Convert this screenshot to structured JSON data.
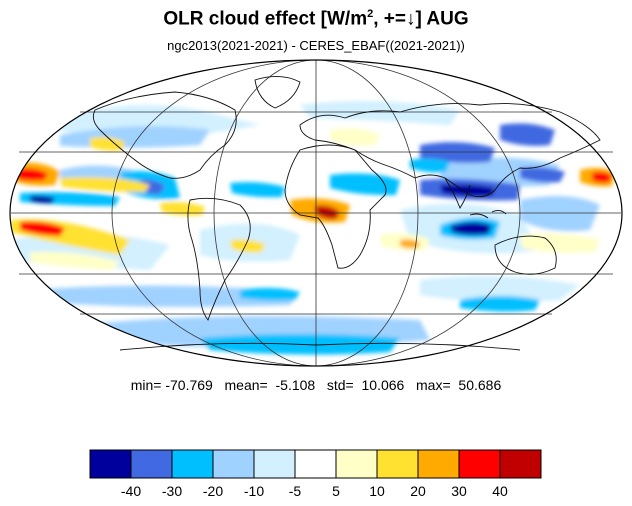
{
  "title": {
    "text_before": "OLR cloud effect [W/m",
    "superscript": "2",
    "text_after": ", +=↓]  AUG"
  },
  "subtitle": "ngc2013(2021-2021) - CERES_EBAF((2021-2021))",
  "stats": {
    "min_label": "min=",
    "min": "-70.769",
    "mean_label": "mean=",
    "mean": "-5.108",
    "std_label": "std=",
    "std": "10.066",
    "max_label": "max=",
    "max": "50.686"
  },
  "colorbar": {
    "colors": [
      "#00009c",
      "#4169e1",
      "#00bfff",
      "#a0d2ff",
      "#d2f0ff",
      "#ffffff",
      "#ffffc8",
      "#ffe132",
      "#ffaa00",
      "#ff0000",
      "#c00000"
    ],
    "labels": [
      "-40",
      "-30",
      "-20",
      "-10",
      "-5",
      "5",
      "10",
      "20",
      "30",
      "40"
    ]
  }
}
